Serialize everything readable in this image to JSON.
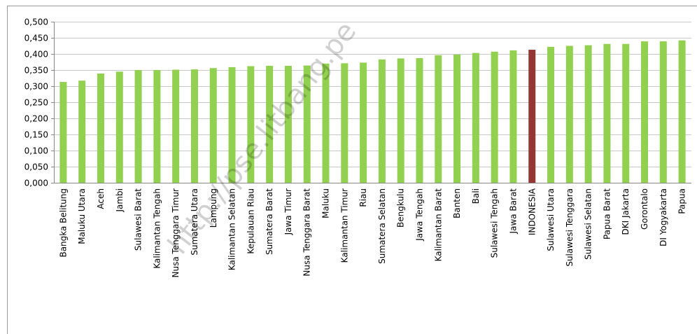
{
  "chart_data": {
    "type": "bar",
    "categories": [
      "Bangka Belitung",
      "Maluku Utara",
      "Aceh",
      "Jambi",
      "Sulawesi Barat",
      "Kalimantan Tengah",
      "Nusa Tenggara Timur",
      "Sumatera Utara",
      "Lampung",
      "Kalimantan Selatan",
      "Kepulauan Riau",
      "Sumatera Barat",
      "Jawa Timur",
      "Nusa Tenggara Barat",
      "Maluku",
      "Kalimantan Timur",
      "Riau",
      "Sumatera Selatan",
      "Bengkulu",
      "Jawa Tengah",
      "Kalimantan Barat",
      "Banten",
      "Bali",
      "Sulawesi Tengah",
      "Jawa Barat",
      "INDONESIA",
      "Sulawesi Utara",
      "Sulawesi Tenggara",
      "Sulawesi Selatan",
      "Papua Barat",
      "DKI Jakarta",
      "Gorontalo",
      "DI Yogyakarta",
      "Papua"
    ],
    "values": [
      0.313,
      0.317,
      0.339,
      0.345,
      0.35,
      0.35,
      0.351,
      0.352,
      0.356,
      0.359,
      0.362,
      0.363,
      0.363,
      0.364,
      0.37,
      0.371,
      0.373,
      0.383,
      0.386,
      0.387,
      0.396,
      0.398,
      0.403,
      0.407,
      0.411,
      0.413,
      0.422,
      0.425,
      0.427,
      0.431,
      0.431,
      0.439,
      0.439,
      0.442
    ],
    "colors": [
      "#92d050",
      "#92d050",
      "#92d050",
      "#92d050",
      "#92d050",
      "#92d050",
      "#92d050",
      "#92d050",
      "#92d050",
      "#92d050",
      "#92d050",
      "#92d050",
      "#92d050",
      "#92d050",
      "#92d050",
      "#92d050",
      "#92d050",
      "#92d050",
      "#92d050",
      "#92d050",
      "#92d050",
      "#92d050",
      "#92d050",
      "#92d050",
      "#92d050",
      "#943634",
      "#92d050",
      "#92d050",
      "#92d050",
      "#92d050",
      "#92d050",
      "#92d050",
      "#92d050",
      "#92d050"
    ],
    "ylim": [
      0,
      0.5
    ],
    "yticks": [
      {
        "value": 0,
        "label": "0,000"
      },
      {
        "value": 0.05,
        "label": "0,050"
      },
      {
        "value": 0.1,
        "label": "0,100"
      },
      {
        "value": 0.15,
        "label": "0,150"
      },
      {
        "value": 0.2,
        "label": "0,200"
      },
      {
        "value": 0.25,
        "label": "0,250"
      },
      {
        "value": 0.3,
        "label": "0,300"
      },
      {
        "value": 0.35,
        "label": "0,350"
      },
      {
        "value": 0.4,
        "label": "0,400"
      },
      {
        "value": 0.45,
        "label": "0,450"
      },
      {
        "value": 0.5,
        "label": "0,500"
      }
    ],
    "grid": true,
    "watermark": "http://pse.litbang.pe"
  }
}
